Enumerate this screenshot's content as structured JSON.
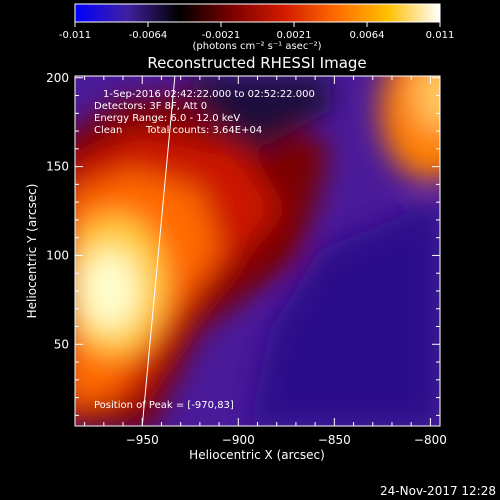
{
  "colorbar": {
    "ticks": [
      "-0.011",
      "-0.0064",
      "-0.0021",
      "0.0021",
      "0.0064",
      "0.011"
    ],
    "unit_label": "(photons cm⁻² s⁻¹ asec⁻²)",
    "range": [
      -0.011,
      0.011
    ],
    "gradient": [
      "#0000ff",
      "#4020a0",
      "#000000",
      "#7a0000",
      "#d21a00",
      "#ff6a00",
      "#ffc000",
      "#ffffff"
    ]
  },
  "chart_data": {
    "type": "heatmap",
    "title": "Reconstructed RHESSI Image",
    "xlabel": "Heliocentric X (arcsec)",
    "ylabel": "Heliocentric Y (arcsec)",
    "xlim": [
      -985,
      -795
    ],
    "ylim": [
      4,
      201
    ],
    "x_ticks": [
      -950,
      -900,
      -850,
      -800
    ],
    "x_tick_labels": [
      "−950",
      "−900",
      "−850",
      "−800"
    ],
    "y_ticks": [
      50,
      100,
      150,
      200
    ],
    "y_tick_labels": [
      "50",
      "100",
      "150",
      "200"
    ],
    "peak": [
      -970,
      83
    ],
    "limb_line": [
      [
        -950,
        4
      ],
      [
        -933,
        201
      ]
    ],
    "annotations": {
      "time": "1-Sep-2016 02:42:22.000 to 02:52:22.000",
      "detectors": "Detectors: 3F 8F, Att 0",
      "energy": "Energy Range: 6.0 - 12.0 keV",
      "clean": "Clean",
      "counts": "Total counts: 3.64E+04",
      "peak_text": "Position of Peak = [-970,83]"
    }
  },
  "footer": {
    "date": "24-Nov-2017 12:28"
  }
}
